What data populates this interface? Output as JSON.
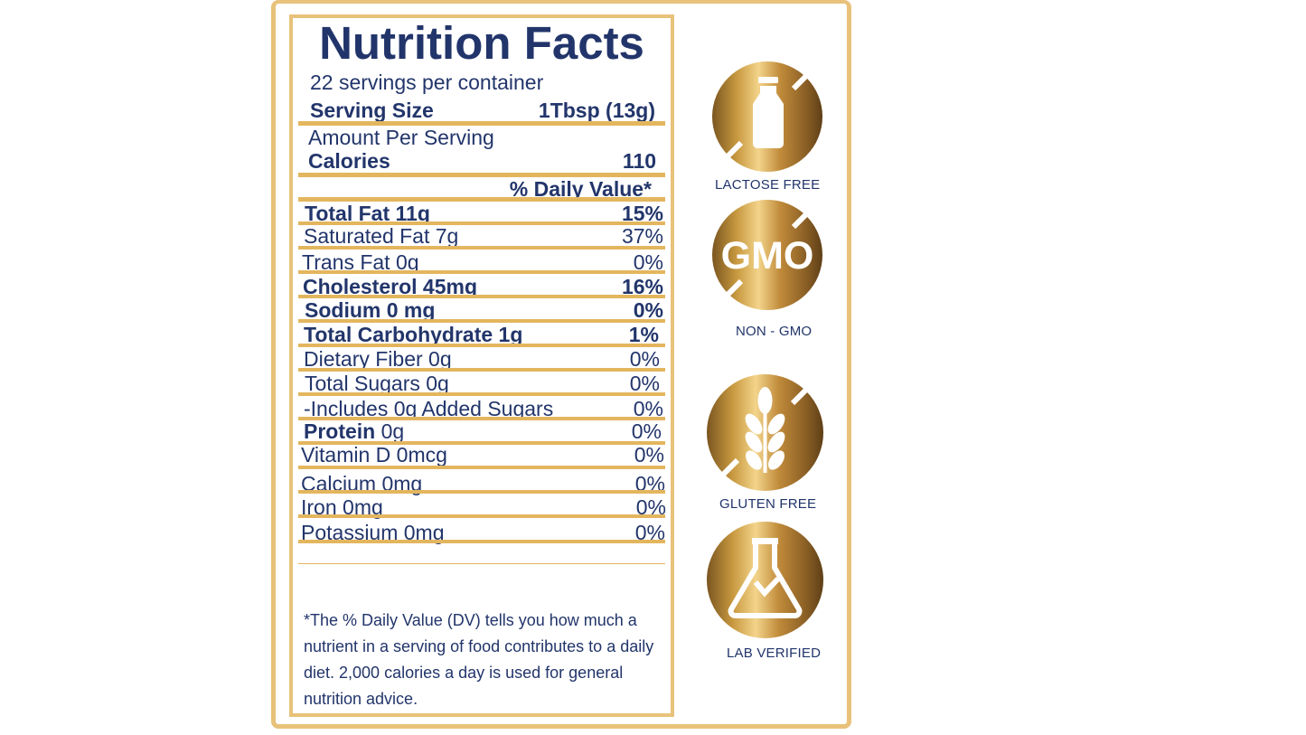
{
  "label": {
    "title": "Nutrition Facts",
    "servings": "22 servings per container",
    "serving_size_label": "Serving Size",
    "serving_size_value": "1Tbsp (13g)",
    "amount_per_serving": "Amount Per Serving",
    "calories_label": "Calories",
    "calories_value": "110",
    "daily_value_header": "% Daily Value*",
    "rows": [
      {
        "name": "Total Fat 11g",
        "pct": "15%"
      },
      {
        "name": "Saturated Fat 7g",
        "pct": "37%"
      },
      {
        "name": "Trans Fat 0g",
        "pct": "0%"
      },
      {
        "name": "Cholesterol 45mg",
        "pct": "16%"
      },
      {
        "name": "Sodium 0 mg",
        "pct": "0%"
      },
      {
        "name": "Total Carbohydrate 1g",
        "pct": "1%"
      },
      {
        "name": "Dietary Fiber 0g",
        "pct": "0%"
      },
      {
        "name": "Total Sugars 0g",
        "pct": "0%"
      },
      {
        "name": "-Includes 0g Added Sugars",
        "pct": "0%"
      },
      {
        "name_bold": "Protein",
        "name_rest": " 0g",
        "pct": "0%"
      },
      {
        "name": "Vitamin D  0mcg",
        "pct": "0%"
      },
      {
        "name": "Calcium 0mg",
        "pct": "0%"
      },
      {
        "name": "Iron 0mg",
        "pct": "0%"
      },
      {
        "name": "Potassium 0mg",
        "pct": "0%"
      }
    ],
    "footnote": "*The % Daily Value (DV) tells you how much a nutrient in a serving of food contributes to a daily diet. 2,000 calories a day is used for general nutrition advice."
  },
  "badges": [
    {
      "label": "LACTOSE FREE",
      "icon": "milk-bottle-icon"
    },
    {
      "label": "NON - GMO",
      "icon": "gmo-crossed-icon",
      "icon_text": "GMO"
    },
    {
      "label": "GLUTEN FREE",
      "icon": "wheat-icon"
    },
    {
      "label": "LAB VERIFIED",
      "icon": "lab-flask-icon"
    }
  ],
  "colors": {
    "navy": "#22356b",
    "gold": "#e3b65e",
    "frame": "#e8c27a"
  }
}
